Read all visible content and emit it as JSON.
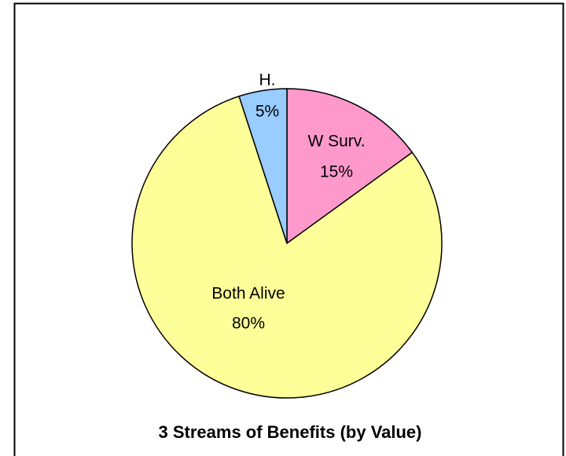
{
  "chart_data": {
    "type": "pie",
    "title": "3 Streams  of Benefits (by Value)",
    "categories": [
      "W Surv.",
      "Both Alive",
      "H."
    ],
    "values": [
      15,
      80,
      5
    ],
    "value_labels": [
      "15%",
      "80%",
      "5%"
    ],
    "colors": [
      "#ff99cc",
      "#ffff99",
      "#99ccff"
    ]
  }
}
